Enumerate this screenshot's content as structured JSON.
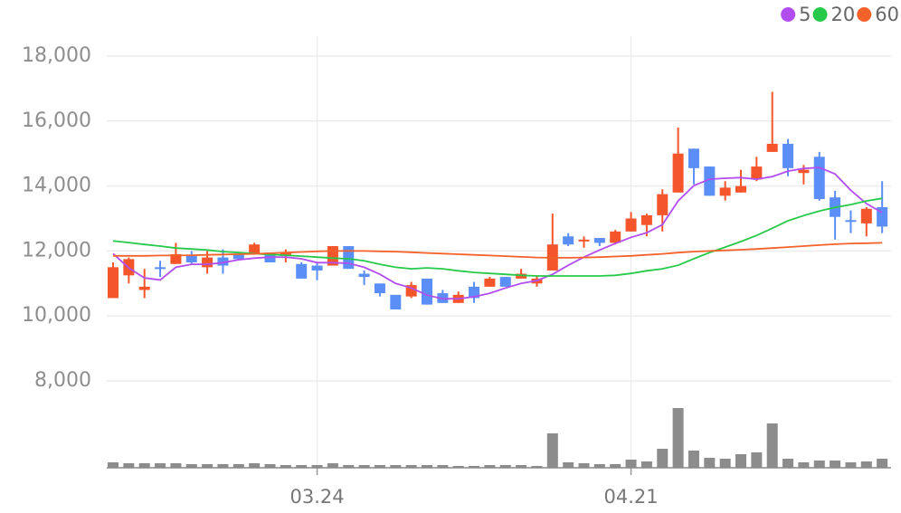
{
  "chart_data": [
    {
      "type": "candlestick",
      "categories": [
        null,
        null,
        null,
        null,
        null,
        null,
        null,
        null,
        null,
        null,
        null,
        null,
        null,
        "03.24",
        null,
        null,
        null,
        null,
        null,
        null,
        null,
        null,
        null,
        null,
        null,
        null,
        null,
        null,
        null,
        null,
        null,
        null,
        null,
        "04.21",
        null,
        null,
        null,
        null,
        null,
        null,
        null,
        null,
        null,
        null,
        null,
        null,
        null,
        null,
        null,
        null
      ],
      "open": [
        10550,
        11250,
        10800,
        11500,
        11600,
        11850,
        11500,
        11800,
        11900,
        11900,
        11950,
        11850,
        11600,
        11550,
        11550,
        12150,
        11300,
        11000,
        10650,
        10600,
        11150,
        10700,
        10400,
        10900,
        10900,
        11200,
        11150,
        11000,
        11400,
        12450,
        12300,
        12400,
        12250,
        12600,
        12800,
        13100,
        13800,
        15150,
        14600,
        13700,
        13800,
        14200,
        15050,
        15300,
        14400,
        14900,
        13650,
        12950,
        12850,
        13350
      ],
      "high": [
        11650,
        11800,
        11450,
        11700,
        12250,
        12000,
        12000,
        12050,
        11950,
        12250,
        11950,
        12050,
        11650,
        11650,
        12150,
        12150,
        11400,
        11000,
        10650,
        11050,
        11150,
        10800,
        10750,
        11050,
        11200,
        11200,
        11450,
        11250,
        13150,
        12550,
        12450,
        12400,
        12650,
        13200,
        13150,
        13900,
        15800,
        15150,
        14600,
        14150,
        14500,
        14900,
        16900,
        15450,
        14650,
        15050,
        13850,
        13250,
        13350,
        14150
      ],
      "low": [
        10550,
        11000,
        10550,
        11200,
        11600,
        11600,
        11300,
        11300,
        11700,
        11900,
        11650,
        11650,
        11150,
        11100,
        11550,
        11450,
        10950,
        10600,
        10200,
        10550,
        10350,
        10400,
        10400,
        10400,
        10900,
        10900,
        11150,
        10900,
        11400,
        12150,
        12100,
        12150,
        12200,
        12600,
        12450,
        12600,
        13800,
        14050,
        13700,
        13550,
        13800,
        14150,
        15050,
        14300,
        14050,
        13550,
        12350,
        12550,
        12450,
        12550
      ],
      "close": [
        11500,
        11750,
        10900,
        11450,
        11900,
        11650,
        11800,
        11550,
        11750,
        12200,
        11650,
        11950,
        11150,
        11400,
        12150,
        11450,
        11200,
        10700,
        10200,
        10950,
        10350,
        10400,
        10650,
        10550,
        11150,
        10900,
        11300,
        11150,
        12200,
        12200,
        12350,
        12250,
        12600,
        13000,
        13100,
        13750,
        15000,
        14550,
        13700,
        13950,
        14000,
        14600,
        15300,
        14550,
        14500,
        13600,
        13050,
        12900,
        13300,
        12750
      ],
      "up_color": "#f5552b",
      "down_color": "#5b8ff7",
      "series": [
        {
          "name": "5",
          "color": "#b24ef0",
          "values": [
            11920,
            11480,
            11170,
            11110,
            11500,
            11590,
            11590,
            11640,
            11730,
            11780,
            11810,
            11810,
            11760,
            11640,
            11640,
            11620,
            11500,
            11280,
            11000,
            10860,
            10640,
            10530,
            10530,
            10590,
            10700,
            10860,
            11000,
            11090,
            11280,
            11560,
            11810,
            12030,
            12230,
            12420,
            12560,
            12810,
            13540,
            14010,
            14210,
            14240,
            14260,
            14210,
            14290,
            14460,
            14540,
            14570,
            14370,
            13870,
            13460,
            13180
          ]
        },
        {
          "name": "20",
          "color": "#27c94a",
          "values": [
            12310,
            12260,
            12200,
            12150,
            12090,
            12060,
            12030,
            11980,
            11950,
            11920,
            11890,
            11870,
            11840,
            11810,
            11780,
            11760,
            11700,
            11590,
            11500,
            11450,
            11480,
            11450,
            11390,
            11340,
            11310,
            11280,
            11250,
            11230,
            11230,
            11230,
            11230,
            11230,
            11250,
            11310,
            11390,
            11450,
            11560,
            11760,
            11950,
            12120,
            12290,
            12480,
            12700,
            12930,
            13090,
            13230,
            13340,
            13430,
            13540,
            13620
          ]
        },
        {
          "name": "60",
          "color": "#f4622a",
          "values": [
            11850,
            11850,
            11850,
            11860,
            11860,
            11870,
            11880,
            11890,
            11900,
            11910,
            11930,
            11950,
            11970,
            11990,
            12000,
            12000,
            12000,
            11990,
            11980,
            11960,
            11940,
            11920,
            11900,
            11880,
            11860,
            11840,
            11820,
            11800,
            11790,
            11790,
            11800,
            11810,
            11830,
            11850,
            11880,
            11910,
            11950,
            11980,
            12000,
            12020,
            12040,
            12060,
            12090,
            12120,
            12150,
            12180,
            12210,
            12230,
            12240,
            12250
          ]
        }
      ],
      "ylim": [
        8000,
        18000
      ],
      "yticks": [
        {
          "value": 8000,
          "label": "8,000"
        },
        {
          "value": 10000,
          "label": "10,000"
        },
        {
          "value": 12000,
          "label": "12,000"
        },
        {
          "value": 14000,
          "label": "14,000"
        },
        {
          "value": 16000,
          "label": "16,000"
        },
        {
          "value": 18000,
          "label": "18,000"
        }
      ],
      "grid": true,
      "legend": "top-right"
    },
    {
      "type": "bar",
      "color": "#8c8c8c",
      "ylim": [
        0,
        80
      ],
      "values": [
        6,
        5,
        5,
        5,
        5,
        4,
        4,
        4,
        4,
        5,
        4,
        3,
        3,
        3,
        5,
        3,
        3,
        3,
        3,
        3,
        3,
        3,
        2,
        2,
        3,
        3,
        3,
        2,
        38,
        6,
        5,
        4,
        4,
        9,
        7,
        21,
        66,
        19,
        11,
        10,
        15,
        17,
        49,
        10,
        6,
        8,
        8,
        6,
        7,
        10
      ]
    }
  ]
}
